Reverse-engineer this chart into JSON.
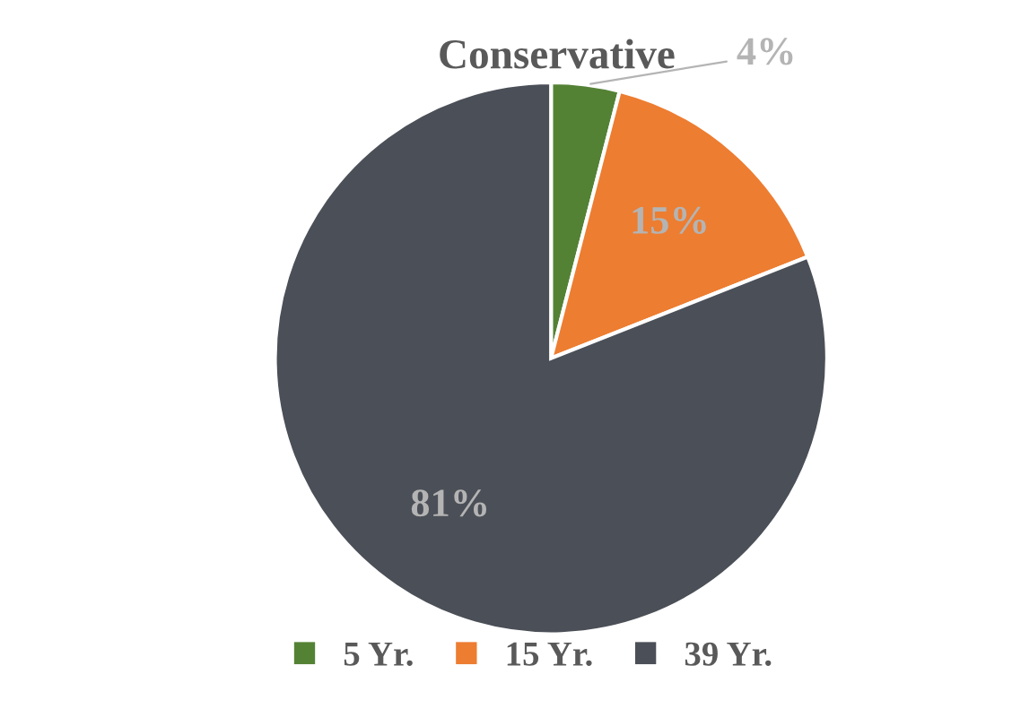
{
  "chart_data": {
    "type": "pie",
    "title": "Conservative",
    "categories": [
      "5 Yr.",
      "15 Yr.",
      "39 Yr."
    ],
    "values": [
      4,
      15,
      81
    ],
    "colors": [
      "#548235",
      "#ed7d31",
      "#4b4f57"
    ],
    "value_labels": [
      "4%",
      "15%",
      "81%"
    ],
    "legend": "bottom"
  }
}
